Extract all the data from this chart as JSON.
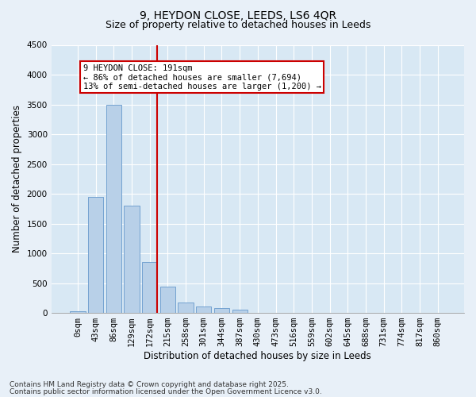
{
  "title_line1": "9, HEYDON CLOSE, LEEDS, LS6 4QR",
  "title_line2": "Size of property relative to detached houses in Leeds",
  "xlabel": "Distribution of detached houses by size in Leeds",
  "ylabel": "Number of detached properties",
  "bar_labels": [
    "0sqm",
    "43sqm",
    "86sqm",
    "129sqm",
    "172sqm",
    "215sqm",
    "258sqm",
    "301sqm",
    "344sqm",
    "387sqm",
    "430sqm",
    "473sqm",
    "516sqm",
    "559sqm",
    "602sqm",
    "645sqm",
    "688sqm",
    "731sqm",
    "774sqm",
    "817sqm",
    "860sqm"
  ],
  "bar_values": [
    30,
    1950,
    3500,
    1800,
    850,
    440,
    170,
    105,
    80,
    60,
    0,
    0,
    0,
    0,
    0,
    0,
    0,
    0,
    0,
    0,
    0
  ],
  "bar_color": "#b8d0e8",
  "bar_edge_color": "#6699cc",
  "vline_color": "#cc0000",
  "vline_x": 4.42,
  "annotation_text": "9 HEYDON CLOSE: 191sqm\n← 86% of detached houses are smaller (7,694)\n13% of semi-detached houses are larger (1,200) →",
  "annotation_box_color": "#cc0000",
  "annotation_bg": "#ffffff",
  "ylim": [
    0,
    4500
  ],
  "yticks": [
    0,
    500,
    1000,
    1500,
    2000,
    2500,
    3000,
    3500,
    4000,
    4500
  ],
  "footnote1": "Contains HM Land Registry data © Crown copyright and database right 2025.",
  "footnote2": "Contains public sector information licensed under the Open Government Licence v3.0.",
  "background_color": "#e8f0f8",
  "plot_background": "#d8e8f4",
  "title1_fontsize": 10,
  "title2_fontsize": 9,
  "xlabel_fontsize": 8.5,
  "ylabel_fontsize": 8.5,
  "tick_fontsize": 7.5,
  "annot_fontsize": 7.5,
  "footnote_fontsize": 6.5
}
